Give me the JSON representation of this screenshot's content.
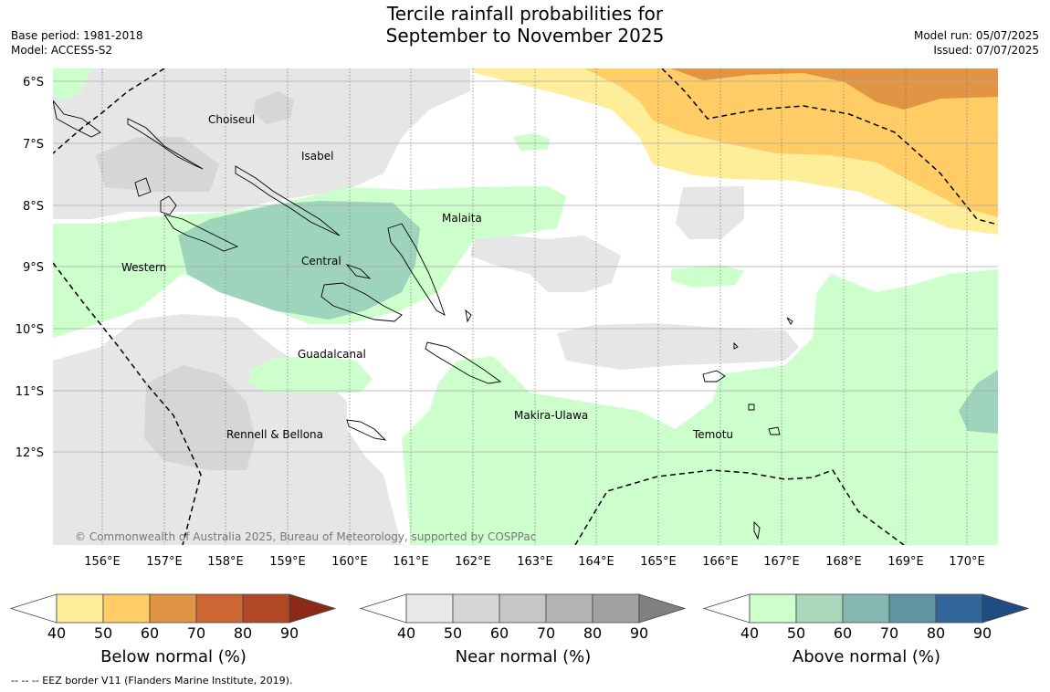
{
  "header": {
    "title_line1": "Tercile rainfall probabilities for",
    "title_line2": "September to November 2025",
    "base_period": "Base period: 1981-2018",
    "model": "Model: ACCESS-S2",
    "model_run": "Model run: 05/07/2025",
    "issued": "Issued: 07/07/2025"
  },
  "map": {
    "lon_ticks": [
      "156°E",
      "157°E",
      "158°E",
      "159°E",
      "160°E",
      "161°E",
      "162°E",
      "163°E",
      "164°E",
      "165°E",
      "166°E",
      "167°E",
      "168°E",
      "169°E",
      "170°E"
    ],
    "lat_ticks": [
      "6°S",
      "7°S",
      "8°S",
      "9°S",
      "10°S",
      "11°S",
      "12°S"
    ],
    "province_labels": [
      "Choiseul",
      "Isabel",
      "Malaita",
      "Western",
      "Central",
      "Guadalcanal",
      "Makira-Ulawa",
      "Temotu",
      "Rennell & Bellona"
    ],
    "copyright": "© Commonwealth of Australia 2025, Bureau of Meteorology, supported by COSPPac"
  },
  "legends": [
    {
      "title": "Below normal (%)",
      "colors": [
        "#ffee99",
        "#ffcc66",
        "#e09444",
        "#cc6633",
        "#b04726",
        "#8c2a1a"
      ]
    },
    {
      "title": "Near normal (%)",
      "colors": [
        "#e8e8e8",
        "#d6d6d6",
        "#c6c6c6",
        "#b4b4b4",
        "#a2a2a2",
        "#808080"
      ]
    },
    {
      "title": "Above normal (%)",
      "colors": [
        "#ccffcc",
        "#a8d8b9",
        "#84b8b0",
        "#5f95a0",
        "#336699",
        "#1f4c82"
      ]
    }
  ],
  "legend_ticks": [
    "40",
    "50",
    "60",
    "70",
    "80",
    "90"
  ],
  "footer": "--  --  -- EEZ border V11 (Flanders Marine Institute, 2019)."
}
